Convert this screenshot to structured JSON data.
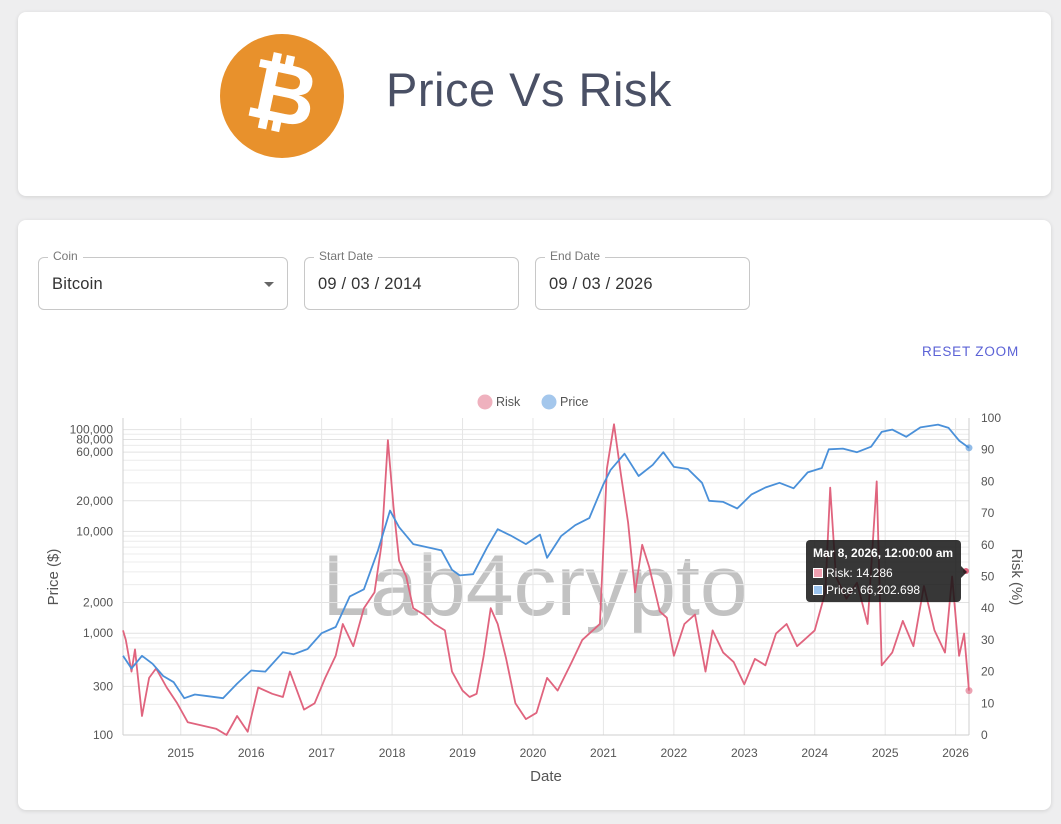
{
  "header": {
    "title": "Price Vs Risk",
    "logo_symbol": "₿",
    "logo_color": "#e8912c"
  },
  "filters": {
    "coin_label": "Coin",
    "coin_value": "Bitcoin",
    "start_label": "Start Date",
    "start_value": "09 / 03 / 2014",
    "end_label": "End Date",
    "end_value": "09 / 03 / 2026"
  },
  "reset_zoom_label": "RESET ZOOM",
  "tooltip": {
    "title": "Mar 8, 2026, 12:00:00 am",
    "risk_text": "Risk: 14.286",
    "price_text": "Price: 66,202.698"
  },
  "chart_data": {
    "type": "line",
    "title": "",
    "watermark": "Lab4crypto",
    "legend": [
      {
        "name": "Risk",
        "color": "#e0647e"
      },
      {
        "name": "Price",
        "color": "#4a90d9"
      }
    ],
    "xlabel": "Date",
    "ylabel_left": "Price ($)",
    "ylabel_right": "Risk (%)",
    "x_range": [
      2014.18,
      2026.19
    ],
    "x_ticks": [
      "2015",
      "2016",
      "2017",
      "2018",
      "2019",
      "2020",
      "2021",
      "2022",
      "2023",
      "2024",
      "2025",
      "2026"
    ],
    "y_left_scale": "log",
    "y_left_range": [
      100,
      130000
    ],
    "y_left_ticks": [
      {
        "value": 100,
        "label": "100"
      },
      {
        "value": 300,
        "label": "300"
      },
      {
        "value": 1000,
        "label": "1,000"
      },
      {
        "value": 2000,
        "label": "2,000"
      },
      {
        "value": 10000,
        "label": "10,000"
      },
      {
        "value": 20000,
        "label": "20,000"
      },
      {
        "value": 60000,
        "label": "60,000"
      },
      {
        "value": 80000,
        "label": "80,000"
      },
      {
        "value": 100000,
        "label": "100,000"
      }
    ],
    "y_right_range": [
      0,
      100
    ],
    "y_right_ticks": [
      "0",
      "10",
      "20",
      "30",
      "40",
      "50",
      "60",
      "70",
      "80",
      "90",
      "100"
    ],
    "series": [
      {
        "name": "Price",
        "axis": "left",
        "x": [
          2014.18,
          2014.3,
          2014.45,
          2014.6,
          2014.75,
          2014.9,
          2015.05,
          2015.2,
          2015.4,
          2015.6,
          2015.8,
          2016.0,
          2016.2,
          2016.45,
          2016.6,
          2016.8,
          2017.0,
          2017.2,
          2017.4,
          2017.6,
          2017.8,
          2017.97,
          2018.1,
          2018.3,
          2018.5,
          2018.7,
          2018.85,
          2018.96,
          2019.15,
          2019.35,
          2019.5,
          2019.7,
          2019.9,
          2020.1,
          2020.2,
          2020.4,
          2020.6,
          2020.8,
          2021.0,
          2021.1,
          2021.3,
          2021.5,
          2021.7,
          2021.85,
          2022.0,
          2022.2,
          2022.4,
          2022.5,
          2022.7,
          2022.9,
          2023.1,
          2023.3,
          2023.5,
          2023.7,
          2023.9,
          2024.1,
          2024.2,
          2024.4,
          2024.6,
          2024.8,
          2024.95,
          2025.1,
          2025.3,
          2025.5,
          2025.75,
          2025.9,
          2026.05,
          2026.19
        ],
        "values": [
          600,
          450,
          600,
          500,
          380,
          330,
          230,
          250,
          240,
          230,
          320,
          430,
          420,
          650,
          620,
          700,
          1000,
          1150,
          2300,
          2700,
          6500,
          16000,
          11000,
          7500,
          7000,
          6500,
          4200,
          3700,
          3800,
          7000,
          10500,
          9000,
          7500,
          9300,
          5500,
          9000,
          11500,
          13500,
          29000,
          40000,
          58000,
          35000,
          45000,
          60000,
          43000,
          41000,
          30000,
          20000,
          19500,
          16800,
          23000,
          27000,
          30000,
          26500,
          38000,
          42000,
          64000,
          65000,
          60000,
          68000,
          95000,
          100000,
          85000,
          105000,
          112000,
          104000,
          78000,
          66200
        ]
      },
      {
        "name": "Risk",
        "axis": "right",
        "x": [
          2014.18,
          2014.22,
          2014.3,
          2014.35,
          2014.45,
          2014.55,
          2014.65,
          2014.8,
          2014.95,
          2015.1,
          2015.3,
          2015.5,
          2015.65,
          2015.8,
          2015.95,
          2016.1,
          2016.3,
          2016.45,
          2016.55,
          2016.75,
          2016.9,
          2017.05,
          2017.2,
          2017.3,
          2017.45,
          2017.6,
          2017.75,
          2017.85,
          2017.94,
          2017.97,
          2018.02,
          2018.1,
          2018.2,
          2018.3,
          2018.45,
          2018.6,
          2018.75,
          2018.85,
          2019.0,
          2019.1,
          2019.2,
          2019.3,
          2019.4,
          2019.5,
          2019.62,
          2019.75,
          2019.9,
          2020.05,
          2020.2,
          2020.35,
          2020.55,
          2020.7,
          2020.85,
          2020.95,
          2021.05,
          2021.15,
          2021.25,
          2021.35,
          2021.45,
          2021.55,
          2021.65,
          2021.8,
          2021.9,
          2022.0,
          2022.15,
          2022.3,
          2022.45,
          2022.55,
          2022.7,
          2022.85,
          2023.0,
          2023.15,
          2023.3,
          2023.45,
          2023.6,
          2023.75,
          2023.85,
          2024.0,
          2024.15,
          2024.22,
          2024.3,
          2024.45,
          2024.6,
          2024.75,
          2024.88,
          2024.95,
          2025.1,
          2025.25,
          2025.4,
          2025.55,
          2025.7,
          2025.85,
          2025.95,
          2026.05,
          2026.12,
          2026.19
        ],
        "values": [
          33,
          30,
          20,
          27,
          6,
          18,
          21,
          15,
          10,
          4,
          3,
          2,
          0,
          6,
          1,
          15,
          13,
          12,
          20,
          8,
          10,
          18,
          25,
          35,
          28,
          40,
          45,
          60,
          93,
          85,
          72,
          55,
          50,
          40,
          38,
          35,
          33,
          20,
          14,
          12,
          13,
          25,
          40,
          35,
          24,
          10,
          5,
          7,
          18,
          14,
          23,
          30,
          33,
          35,
          84,
          98,
          82,
          67,
          45,
          60,
          53,
          39,
          37,
          25,
          35,
          38,
          20,
          33,
          26,
          23,
          16,
          24,
          22,
          32,
          35,
          28,
          30,
          33,
          45,
          78,
          50,
          43,
          48,
          35,
          80,
          22,
          26,
          36,
          28,
          47,
          33,
          26,
          50,
          25,
          32,
          14
        ]
      }
    ]
  }
}
